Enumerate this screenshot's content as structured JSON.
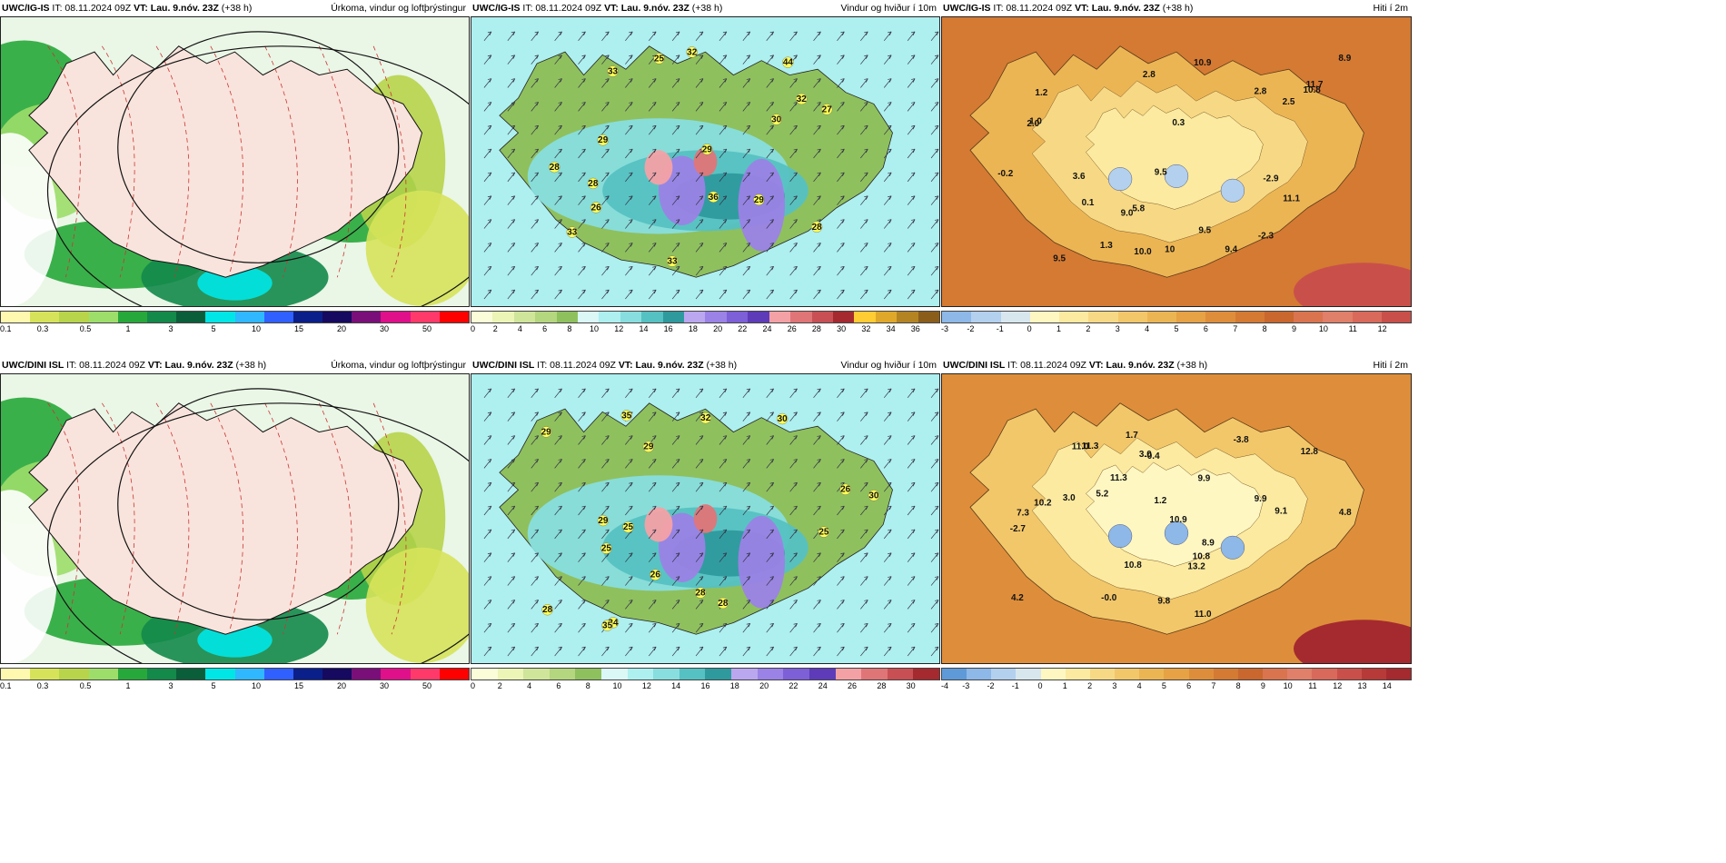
{
  "panels": [
    {
      "model": "UWC/IG-IS",
      "it": " IT: 08.11.2024 09Z ",
      "vt": "VT: Lau. 9.nóv. 23Z",
      "lead": " (+38 h)",
      "title": "Úrkoma, vindur og loftþrýstingur",
      "type": "precip",
      "colors": [
        "#fff9b0",
        "#d6e35a",
        "#b7d44a",
        "#9dde6a",
        "#27a83a",
        "#13894a",
        "#0b5e3a",
        "#00e5e5",
        "#2fb8ff",
        "#3060ff",
        "#0b1f8a",
        "#150a60",
        "#7a0f7a",
        "#e0108a",
        "#ff3a6a",
        "#ff0000"
      ],
      "ticks": [
        "0.1",
        "0.3",
        "0.5",
        "1",
        "3",
        "5",
        "10",
        "15",
        "20",
        "30",
        "50"
      ],
      "labels": []
    },
    {
      "model": "UWC/IG-IS",
      "it": " IT: 08.11.2024 09Z ",
      "vt": "VT: Lau. 9.nóv. 23Z",
      "lead": " (+38 h)",
      "title": "Vindur og hviður í 10m",
      "type": "wind",
      "colors": [
        "#fbfcd8",
        "#ecf4b6",
        "#cfe59a",
        "#b4d67e",
        "#8fc05e",
        "#dbf7f6",
        "#aeeff0",
        "#88dede",
        "#56c1c2",
        "#2f9a9e",
        "#bba7f0",
        "#9b82e6",
        "#7d5fd8",
        "#5e3cb9",
        "#f4a1a5",
        "#e07578",
        "#c85054",
        "#a52a2f",
        "#ffcc33",
        "#e0a82a",
        "#b48423",
        "#8a5e1a"
      ],
      "ticks": [
        "0",
        "2",
        "4",
        "6",
        "8",
        "10",
        "12",
        "14",
        "16",
        "18",
        "20",
        "22",
        "24",
        "26",
        "28",
        "30",
        "32",
        "34",
        "36"
      ],
      "labels": [
        "33",
        "44",
        "33",
        "32",
        "36",
        "29",
        "28",
        "26",
        "27",
        "30",
        "28",
        "32",
        "29",
        "29",
        "33",
        "25",
        "28"
      ]
    },
    {
      "model": "UWC/IG-IS",
      "it": " IT: 08.11.2024 09Z ",
      "vt": "VT: Lau. 9.nóv. 23Z",
      "lead": " (+38 h)",
      "title": "Hiti í 2m",
      "type": "temp",
      "colors": [
        "#8db8e8",
        "#b3d0ee",
        "#d8e7ee",
        "#fff7c2",
        "#fbeaa0",
        "#f7d985",
        "#f2c76a",
        "#ecb554",
        "#e6a244",
        "#de8e3a",
        "#d47a33",
        "#c9672e",
        "#d9744f",
        "#e07f6a",
        "#d9695b",
        "#c9504a"
      ],
      "ticks": [
        "-3",
        "-2",
        "-1",
        "0",
        "1",
        "2",
        "3",
        "4",
        "5",
        "6",
        "7",
        "8",
        "9",
        "10",
        "11",
        "12"
      ],
      "labels": [
        "9.0",
        "5.8",
        "10.9",
        "9.5",
        "2.8",
        "1.3",
        "8.9",
        "11.7",
        "9.5",
        "2.0",
        "1.2",
        "2.8",
        "10.8",
        "9.5",
        "1.0",
        "9.4",
        "3.6",
        "-0.2",
        "-2.3",
        "-2.9",
        "2.5",
        "0.3",
        "10.0",
        "11.1",
        "0.1",
        "10"
      ]
    },
    {
      "model": "UWC/DINI ISL",
      "it": " IT: 08.11.2024 09Z ",
      "vt": "VT: Lau. 9.nóv. 23Z",
      "lead": " (+38 h)",
      "title": "Úrkoma, vindur og loftþrýstingur",
      "type": "precip",
      "colors": [
        "#fff9b0",
        "#d6e35a",
        "#b7d44a",
        "#9dde6a",
        "#27a83a",
        "#13894a",
        "#0b5e3a",
        "#00e5e5",
        "#2fb8ff",
        "#3060ff",
        "#0b1f8a",
        "#150a60",
        "#7a0f7a",
        "#e0108a",
        "#ff3a6a",
        "#ff0000"
      ],
      "ticks": [
        "0.1",
        "0.3",
        "0.5",
        "1",
        "3",
        "5",
        "10",
        "15",
        "20",
        "30",
        "50"
      ],
      "labels": []
    },
    {
      "model": "UWC/DINI ISL",
      "it": " IT: 08.11.2024 09Z ",
      "vt": "VT: Lau. 9.nóv. 23Z",
      "lead": " (+38 h)",
      "title": "Vindur og hviður í 10m",
      "type": "wind",
      "colors": [
        "#fbfcd8",
        "#ecf4b6",
        "#cfe59a",
        "#b4d67e",
        "#8fc05e",
        "#dbf7f6",
        "#aeeff0",
        "#88dede",
        "#56c1c2",
        "#2f9a9e",
        "#bba7f0",
        "#9b82e6",
        "#7d5fd8",
        "#5e3cb9",
        "#f4a1a5",
        "#e07578",
        "#c85054",
        "#a52a2f"
      ],
      "ticks": [
        "0",
        "2",
        "4",
        "6",
        "8",
        "10",
        "12",
        "14",
        "16",
        "18",
        "20",
        "22",
        "24",
        "26",
        "28",
        "30"
      ],
      "labels": [
        "25",
        "30",
        "34",
        "30",
        "35",
        "28",
        "28",
        "35",
        "28",
        "26",
        "29",
        "25",
        "29",
        "26",
        "32",
        "25",
        "29"
      ]
    },
    {
      "model": "UWC/DINI ISL",
      "it": " IT: 08.11.2024 09Z ",
      "vt": "VT: Lau. 9.nóv. 23Z",
      "lead": " (+38 h)",
      "title": "Hiti í 2m",
      "type": "temp",
      "colors": [
        "#5f9ad8",
        "#8db8e8",
        "#b3d0ee",
        "#d8e7ee",
        "#fff7c2",
        "#fbeaa0",
        "#f7d985",
        "#f2c76a",
        "#ecb554",
        "#e6a244",
        "#de8e3a",
        "#d47a33",
        "#c9672e",
        "#d9744f",
        "#e07f6a",
        "#d9695b",
        "#c9504a",
        "#b83a38",
        "#a52a2f"
      ],
      "ticks": [
        "-4",
        "-3",
        "-2",
        "-1",
        "0",
        "1",
        "2",
        "3",
        "4",
        "5",
        "6",
        "7",
        "8",
        "9",
        "10",
        "11",
        "12",
        "13",
        "14"
      ],
      "labels": [
        "7.3",
        "10.8",
        "11.0",
        "1.7",
        "10.2",
        "9.9",
        "11.3",
        "4.8",
        "9.1",
        "5.2",
        "11.3",
        "13.2",
        "10.8",
        "-0.0",
        "3.0",
        "10.9",
        "9.8",
        "4.2",
        "-0.4",
        "-2.7",
        "1.2",
        "-3.8",
        "3.0",
        "9.9",
        "8.9",
        "12.8",
        "11.0"
      ]
    }
  ]
}
